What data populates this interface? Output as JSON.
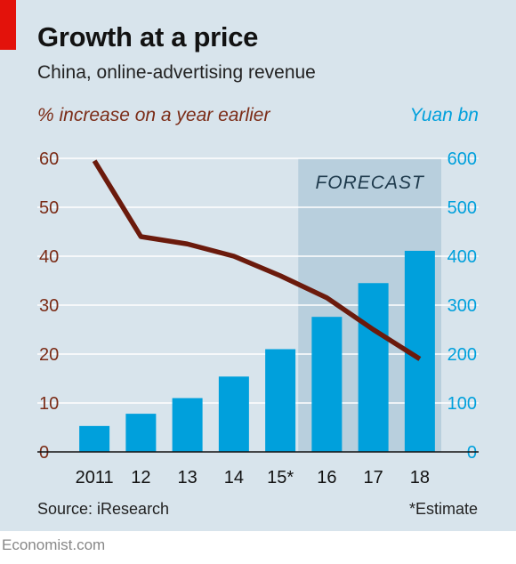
{
  "title": "Growth at a price",
  "subtitle": "China, online-advertising revenue",
  "source": "Source: iResearch",
  "footnote": "*Estimate",
  "brand": "Economist.com",
  "colors": {
    "bars": "#00a0dc",
    "line": "#6b1a0c",
    "forecast_shade": "#b8cfdd",
    "background": "#d8e4ec",
    "brand_red": "#e3120b"
  },
  "chart_data": {
    "type": "bar",
    "categories": [
      "2011",
      "12",
      "13",
      "14",
      "15*",
      "16",
      "17",
      "18"
    ],
    "series": [
      {
        "name": "Yuan bn",
        "type": "bar",
        "axis": "right",
        "values": [
          53,
          78,
          110,
          154,
          210,
          276,
          345,
          411
        ]
      },
      {
        "name": "% increase on a year earlier",
        "type": "line",
        "axis": "left",
        "values": [
          59.5,
          44,
          42.5,
          40,
          36,
          31.5,
          25,
          19
        ]
      }
    ],
    "ylabel_left": "% increase on a year earlier",
    "ylabel_right": "Yuan bn",
    "ylim_left": [
      0,
      60
    ],
    "ylim_right": [
      0,
      600
    ],
    "yticks_left": [
      0,
      10,
      20,
      30,
      40,
      50,
      60
    ],
    "yticks_right": [
      0,
      100,
      200,
      300,
      400,
      500,
      600
    ],
    "forecast": {
      "label": "FORECAST",
      "categories": [
        "16",
        "17",
        "18"
      ]
    },
    "grid": true
  }
}
